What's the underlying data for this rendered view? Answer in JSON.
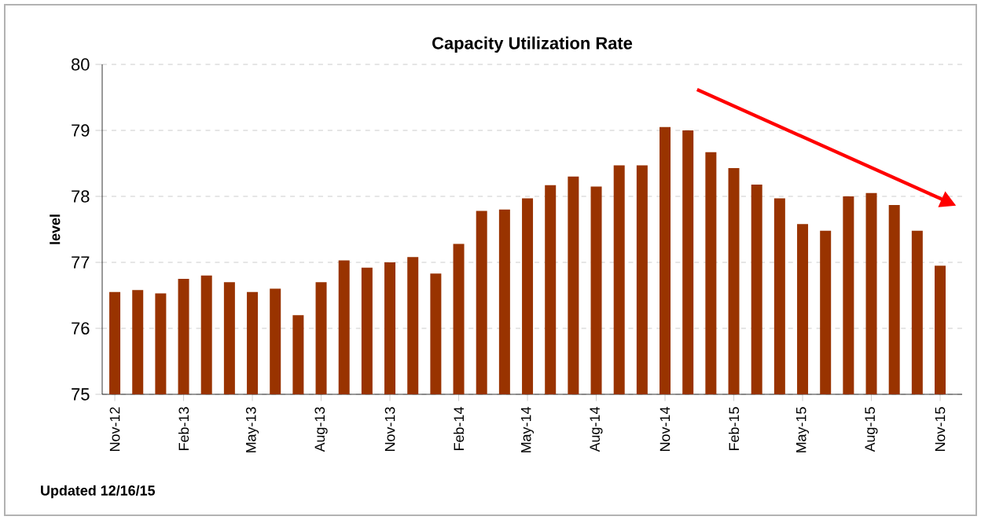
{
  "chart_data": {
    "type": "bar",
    "title": "Capacity Utilization Rate",
    "ylabel": "level",
    "categories": [
      "Nov-12",
      null,
      null,
      "Feb-13",
      null,
      null,
      "May-13",
      null,
      null,
      "Aug-13",
      null,
      null,
      "Nov-13",
      null,
      null,
      "Feb-14",
      null,
      null,
      "May-14",
      null,
      null,
      "Aug-14",
      null,
      null,
      "Nov-14",
      null,
      null,
      "Feb-15",
      null,
      null,
      "May-15",
      null,
      null,
      "Aug-15",
      null,
      null,
      "Nov-15"
    ],
    "values": [
      76.55,
      76.58,
      76.53,
      76.75,
      76.8,
      76.7,
      76.55,
      76.6,
      76.2,
      76.7,
      77.03,
      76.92,
      77.0,
      77.08,
      76.83,
      77.28,
      77.78,
      77.8,
      77.97,
      78.17,
      78.3,
      78.15,
      78.47,
      78.47,
      79.05,
      79.0,
      78.67,
      78.43,
      78.18,
      77.97,
      77.58,
      77.48,
      78.0,
      78.05,
      77.87,
      77.48,
      76.95
    ],
    "color": "#993300",
    "ylim": [
      75,
      80
    ],
    "yticks": [
      75,
      76,
      77,
      78,
      79,
      80
    ],
    "grid": "y",
    "annotations": [
      "Updated  12/16/15"
    ]
  }
}
